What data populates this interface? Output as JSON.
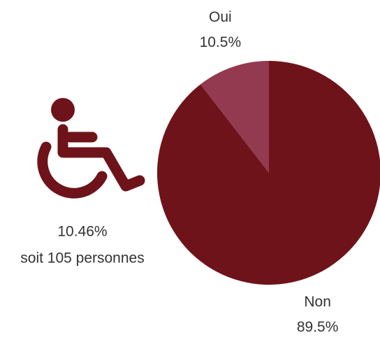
{
  "chart_data": {
    "type": "pie",
    "categories": [
      "Oui",
      "Non"
    ],
    "values": [
      10.5,
      89.5
    ],
    "value_labels": [
      "10.5%",
      "89.5%"
    ],
    "colors": [
      "#933a50",
      "#6e131a"
    ],
    "annotations": [
      "10.46%",
      "soit  105 personnes"
    ]
  }
}
